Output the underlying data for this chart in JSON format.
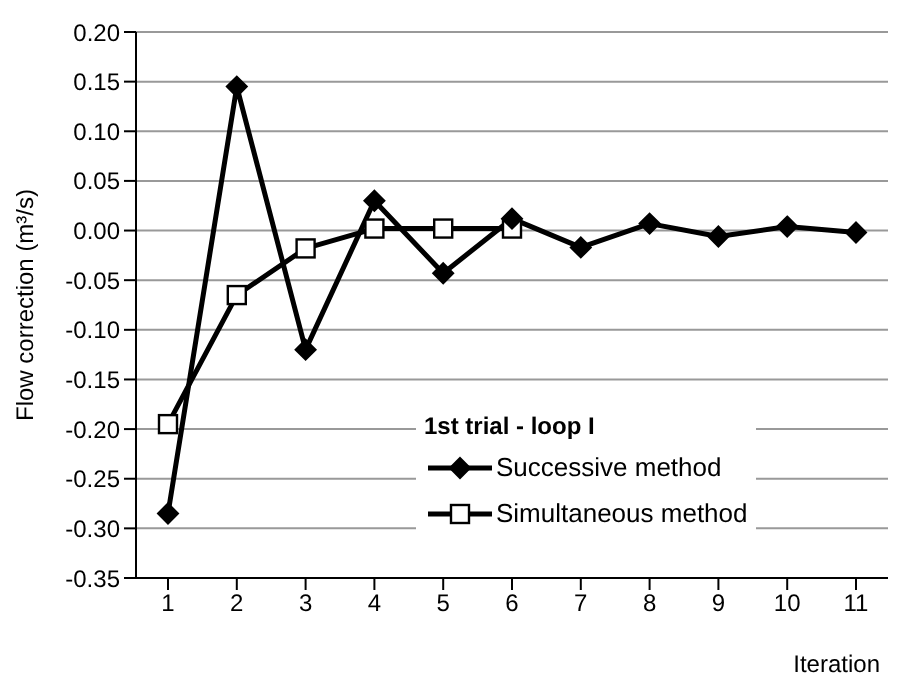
{
  "chart_data": {
    "type": "line",
    "ylabel": "Flow correction (m³/s)",
    "xlabel": "Iteration",
    "legend_title": "1st trial - loop I",
    "categories": [
      "1",
      "2",
      "3",
      "4",
      "5",
      "6",
      "7",
      "8",
      "9",
      "10",
      "11"
    ],
    "series": [
      {
        "name": "Successive method",
        "color": "#000000",
        "marker": "diamond",
        "values": [
          -0.285,
          0.145,
          -0.12,
          0.03,
          -0.043,
          0.012,
          -0.017,
          0.007,
          -0.006,
          0.004,
          -0.002
        ]
      },
      {
        "name": "Simultaneous method",
        "color": "#000000",
        "marker": "square",
        "values": [
          -0.195,
          -0.065,
          -0.018,
          0.002,
          0.002,
          0.002,
          null,
          null,
          null,
          null,
          null
        ]
      }
    ],
    "ylim": [
      -0.35,
      0.2
    ],
    "yticks": [
      {
        "value": -0.35,
        "label": "-0.35"
      },
      {
        "value": -0.3,
        "label": "-0.30"
      },
      {
        "value": -0.25,
        "label": "-0.25"
      },
      {
        "value": -0.2,
        "label": "-0.20"
      },
      {
        "value": -0.15,
        "label": "-0.15"
      },
      {
        "value": -0.1,
        "label": "-0.10"
      },
      {
        "value": -0.05,
        "label": "-0.05"
      },
      {
        "value": 0,
        "label": "0.00"
      },
      {
        "value": 0.05,
        "label": "0.05"
      },
      {
        "value": 0.1,
        "label": "0.10"
      },
      {
        "value": 0.15,
        "label": "0.15"
      },
      {
        "value": 0.2,
        "label": "0.20"
      }
    ],
    "grid": "y",
    "legend": "bottom right",
    "line_style": "solid"
  }
}
